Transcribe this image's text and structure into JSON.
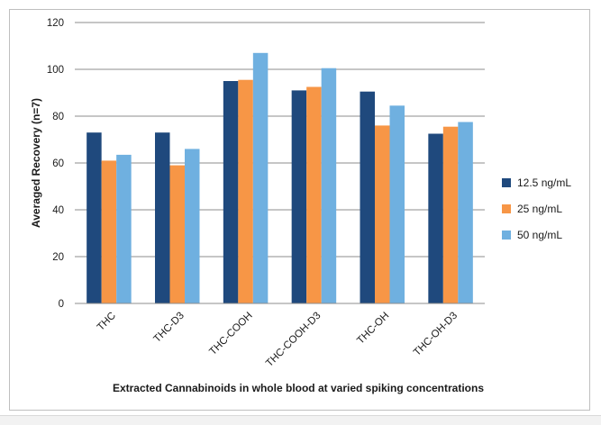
{
  "chart_data": {
    "type": "bar",
    "title": "",
    "xlabel": "Extracted Cannabinoids in whole blood at varied spiking concentrations",
    "ylabel": "Averaged Recovery (n=7)",
    "ylim": [
      0,
      120
    ],
    "yticks": [
      0,
      20,
      40,
      60,
      80,
      100,
      120
    ],
    "grid": true,
    "legend_position": "right",
    "categories": [
      "THC",
      "THC-D3",
      "THC-COOH",
      "THC-COOH-D3",
      "THC-OH",
      "THC-OH-D3"
    ],
    "series": [
      {
        "name": "12.5 ng/mL",
        "color": "#1f497d",
        "values": [
          73,
          73,
          95,
          91,
          90.5,
          72.5
        ]
      },
      {
        "name": "25 ng/mL",
        "color": "#f79646",
        "values": [
          61,
          59,
          95.5,
          92.5,
          76,
          75.5
        ]
      },
      {
        "name": "50 ng/mL",
        "color": "#6fb0e0",
        "values": [
          63.5,
          66,
          107,
          100.5,
          84.5,
          77.5
        ]
      }
    ]
  }
}
